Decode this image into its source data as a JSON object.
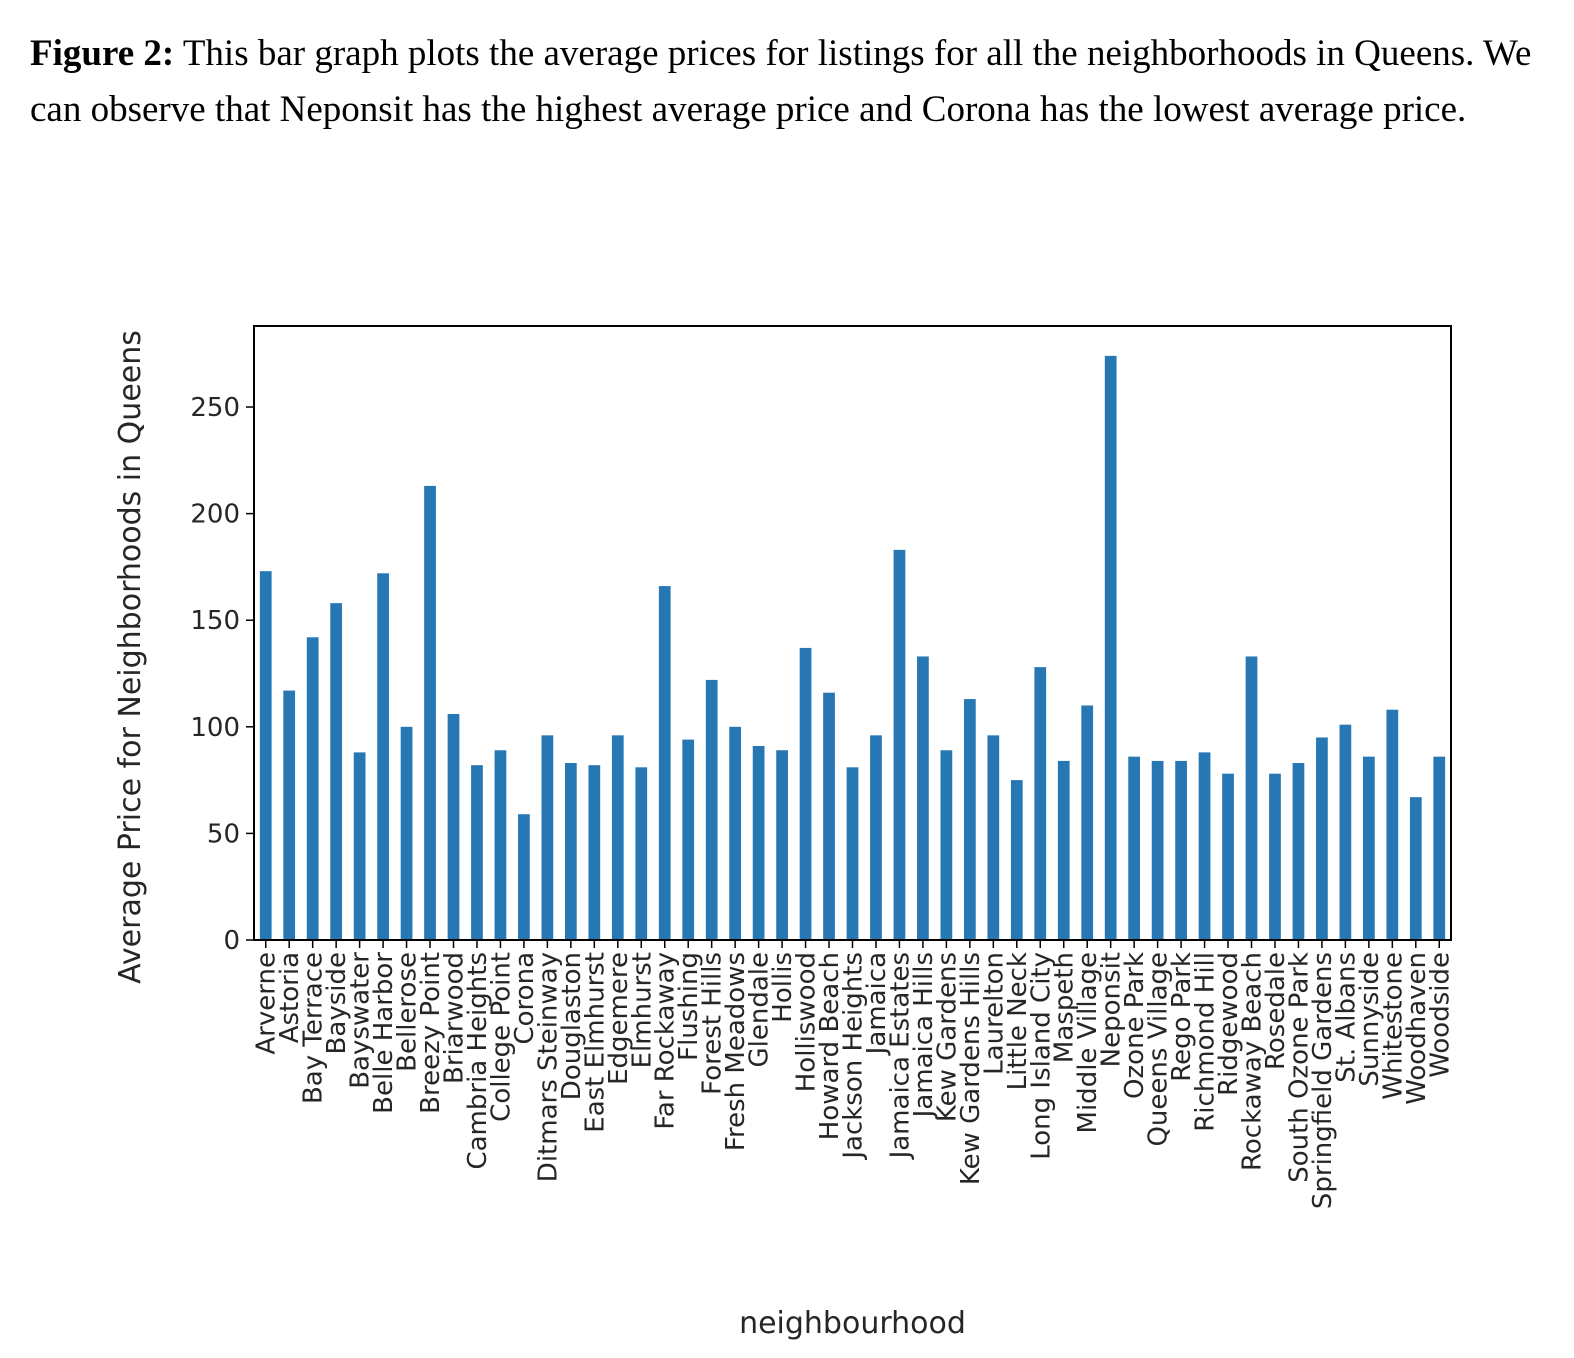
{
  "caption": {
    "label": "Figure 2:",
    "text": "This bar graph plots the average prices for listings for all the neighborhoods in Queens. We can observe that Neponsit has the highest average price and Corona has the lowest average price."
  },
  "colors": {
    "bar": "#2677b4",
    "axis": "#000000"
  },
  "chart_data": {
    "type": "bar",
    "title": "",
    "xlabel": "neighbourhood",
    "ylabel": "Average Price for Neighborhoods in Queens",
    "ylim": [
      0,
      288
    ],
    "yticks": [
      0,
      50,
      100,
      150,
      200,
      250
    ],
    "grid": false,
    "categories": [
      "Arverne",
      "Astoria",
      "Bay Terrace",
      "Bayside",
      "Bayswater",
      "Belle Harbor",
      "Bellerose",
      "Breezy Point",
      "Briarwood",
      "Cambria Heights",
      "College Point",
      "Corona",
      "Ditmars Steinway",
      "Douglaston",
      "East Elmhurst",
      "Edgemere",
      "Elmhurst",
      "Far Rockaway",
      "Flushing",
      "Forest Hills",
      "Fresh Meadows",
      "Glendale",
      "Hollis",
      "Holliswood",
      "Howard Beach",
      "Jackson Heights",
      "Jamaica",
      "Jamaica Estates",
      "Jamaica Hills",
      "Kew Gardens",
      "Kew Gardens Hills",
      "Laurelton",
      "Little Neck",
      "Long Island City",
      "Maspeth",
      "Middle Village",
      "Neponsit",
      "Ozone Park",
      "Queens Village",
      "Rego Park",
      "Richmond Hill",
      "Ridgewood",
      "Rockaway Beach",
      "Rosedale",
      "South Ozone Park",
      "Springfield Gardens",
      "St. Albans",
      "Sunnyside",
      "Whitestone",
      "Woodhaven",
      "Woodside"
    ],
    "values": [
      173,
      117,
      142,
      158,
      88,
      172,
      100,
      213,
      106,
      82,
      89,
      59,
      96,
      83,
      82,
      96,
      81,
      166,
      94,
      122,
      100,
      91,
      89,
      137,
      116,
      81,
      96,
      183,
      133,
      89,
      113,
      96,
      75,
      128,
      84,
      110,
      274,
      86,
      84,
      84,
      88,
      78,
      133,
      78,
      83,
      95,
      101,
      86,
      108,
      67,
      86
    ]
  }
}
